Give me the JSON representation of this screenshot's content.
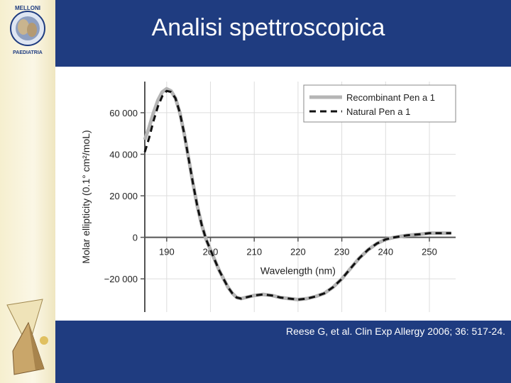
{
  "slide": {
    "title": "Analisi spettroscopica",
    "citation": "Reese G, et al. Clin Exp Allergy 2006; 36: 517-24.",
    "logo_top_text": "MELLONI",
    "logo_bottom_text": "PAEDIATRIA",
    "colors": {
      "band": "#1f3c80",
      "sidebar": "#f6efcf"
    }
  },
  "chart_data": {
    "type": "line",
    "xlabel": "Wavelength (nm)",
    "ylabel": "Molar ellipticity (0.1° cm²/moL)",
    "xlim": [
      185,
      256
    ],
    "ylim": [
      -36000,
      75000
    ],
    "x_ticks": [
      190,
      200,
      210,
      220,
      230,
      240,
      250
    ],
    "y_ticks": [
      60000,
      40000,
      20000,
      0,
      -20000
    ],
    "x_tick_labels": [
      "190",
      "200",
      "210",
      "220",
      "230",
      "240",
      "250"
    ],
    "y_tick_labels": [
      "60 000",
      "40 000",
      "20 000",
      "0",
      "−20 000"
    ],
    "legend_position": "top-right",
    "series": [
      {
        "name": "Recombinant Pen a 1",
        "color": "#b5b5b5",
        "style": "solid",
        "x": [
          185,
          186,
          187,
          188,
          189,
          190,
          191,
          192,
          193,
          194,
          195,
          196,
          197,
          198,
          199,
          200,
          201,
          202,
          203,
          204,
          205,
          206,
          207,
          208,
          209,
          210,
          212,
          214,
          216,
          218,
          220,
          222,
          224,
          226,
          228,
          230,
          232,
          234,
          236,
          238,
          240,
          242,
          245,
          248,
          250,
          253,
          255
        ],
        "y": [
          47000,
          53000,
          60000,
          66000,
          70000,
          71500,
          70500,
          67000,
          60000,
          50000,
          38000,
          26000,
          15000,
          6000,
          -1000,
          -6000,
          -11000,
          -16000,
          -20000,
          -24000,
          -27000,
          -29000,
          -29500,
          -29000,
          -28500,
          -28000,
          -27500,
          -28000,
          -29000,
          -29500,
          -30000,
          -29500,
          -28500,
          -27000,
          -24000,
          -20000,
          -15000,
          -10000,
          -6000,
          -3000,
          -1000,
          0,
          1000,
          1500,
          2000,
          2000,
          2000
        ]
      },
      {
        "name": "Natural Pen a 1",
        "color": "#111111",
        "style": "dashed",
        "x": [
          185,
          186,
          187,
          188,
          189,
          190,
          191,
          192,
          193,
          194,
          195,
          196,
          197,
          198,
          199,
          200,
          201,
          202,
          203,
          204,
          205,
          206,
          207,
          208,
          209,
          210,
          212,
          214,
          216,
          218,
          220,
          222,
          224,
          226,
          228,
          230,
          232,
          234,
          236,
          238,
          240,
          242,
          245,
          248,
          250,
          253,
          255
        ],
        "y": [
          41000,
          48000,
          56000,
          63000,
          68000,
          70500,
          70000,
          67000,
          60000,
          50000,
          38000,
          26000,
          15000,
          6000,
          -1000,
          -6000,
          -11000,
          -16000,
          -20000,
          -24000,
          -27000,
          -29000,
          -29500,
          -29000,
          -28500,
          -28000,
          -27500,
          -28000,
          -29000,
          -29500,
          -30000,
          -29500,
          -28500,
          -27000,
          -24000,
          -20000,
          -15000,
          -10000,
          -6000,
          -3000,
          -1000,
          0,
          1000,
          1500,
          2000,
          2000,
          2000
        ]
      }
    ]
  }
}
